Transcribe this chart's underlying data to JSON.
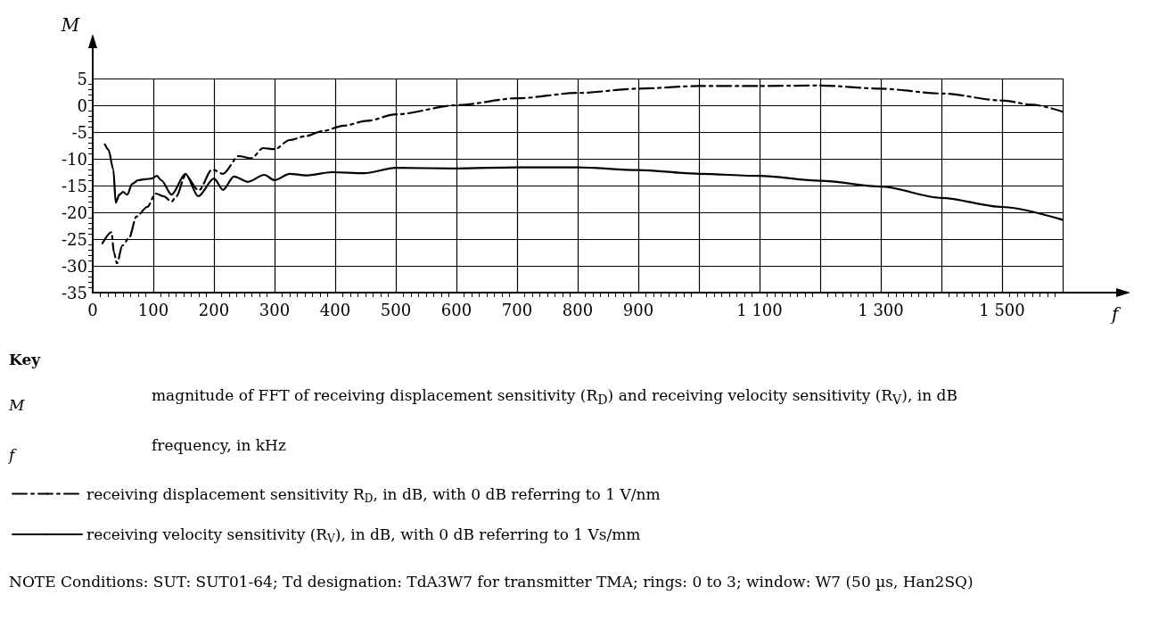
{
  "chart_data": {
    "type": "line",
    "xlabel": "f",
    "ylabel": "M",
    "legend_title": "Key",
    "annotations": [
      "magnitude of FFT of receiving displacement sensitivity (R$_{D}$) and receiving velocity sensitivity (R$_{V}$), in dB",
      "frequency, in kHz",
      "NOTE Conditions: SUT: SUT01-64; Td designation: TdA3W7 for transmitter TMA; rings: 0 to 3; window: W7 (50 µs, Han2SQ)"
    ],
    "xlim": [
      0,
      1600
    ],
    "ylim": [
      -35,
      5
    ],
    "xticks": [
      0,
      100,
      200,
      300,
      400,
      500,
      600,
      700,
      800,
      900,
      {
        "value": 1000,
        "label": null
      },
      {
        "value": 1100,
        "label": "1 100"
      },
      {
        "value": 1200,
        "label": null
      },
      {
        "value": 1300,
        "label": "1 300"
      },
      {
        "value": 1400,
        "label": null
      },
      {
        "value": 1500,
        "label": "1 500"
      },
      {
        "value": 1600,
        "label": null
      }
    ],
    "yticks": [
      -35,
      -30,
      -25,
      -20,
      -15,
      -10,
      -5,
      0,
      5
    ],
    "grid": true,
    "legend": "bottom",
    "marker": "none",
    "series": [
      {
        "name": "receiving displacement sensitivity R$_{D}$, in dB, with 0 dB referring to 1 V/nm",
        "color": "#000000",
        "line_style": "dashdot",
        "x": [
          16,
          31,
          35,
          40,
          49,
          60,
          72,
          90,
          104,
          117,
          130,
          138,
          153,
          175,
          197,
          215,
          241,
          262,
          281,
          300,
          325,
          350,
          380,
          414,
          453,
          500,
          600,
          700,
          800,
          900,
          1000,
          1100,
          1200,
          1300,
          1400,
          1500,
          1550,
          1600
        ],
        "values": [
          -25.8,
          -23.7,
          -27.5,
          -29.5,
          -26.2,
          -24.8,
          -20.8,
          -19,
          -16.5,
          -17,
          -18,
          -17,
          -13.1,
          -15.9,
          -12,
          -12.8,
          -9.5,
          -9.9,
          -8,
          -8.2,
          -6.5,
          -5.8,
          -4.8,
          -3.8,
          -2.9,
          -1.7,
          0,
          1.3,
          2.3,
          3.1,
          3.6,
          3.6,
          3.7,
          3.1,
          2.2,
          0.9,
          0.1,
          -1.2
        ]
      },
      {
        "name": "receiving velocity sensitivity (R$_{V}$), in dB, with 0 dB referring to 1 Vs/mm",
        "color": "#000000",
        "line_style": "solid",
        "x": [
          20,
          26,
          34,
          38,
          44,
          50,
          57,
          65,
          75,
          87,
          97,
          106,
          113,
          130,
          153,
          174,
          200,
          215,
          233,
          256,
          283,
          300,
          325,
          352,
          395,
          447,
          500,
          600,
          700,
          800,
          900,
          1000,
          1100,
          1200,
          1300,
          1400,
          1500,
          1600
        ],
        "values": [
          -7.3,
          -8.3,
          -12,
          -18.2,
          -16.7,
          -16.2,
          -16.7,
          -14.7,
          -14,
          -13.8,
          -13.7,
          -13.2,
          -14,
          -16.7,
          -12.8,
          -17,
          -13.7,
          -15.8,
          -13.3,
          -14.3,
          -13,
          -14,
          -12.8,
          -13.1,
          -12.5,
          -12.7,
          -11.7,
          -11.8,
          -11.6,
          -11.6,
          -12.1,
          -12.8,
          -13.2,
          -14.1,
          -15.2,
          -17.3,
          -19,
          -21.4
        ]
      }
    ]
  }
}
